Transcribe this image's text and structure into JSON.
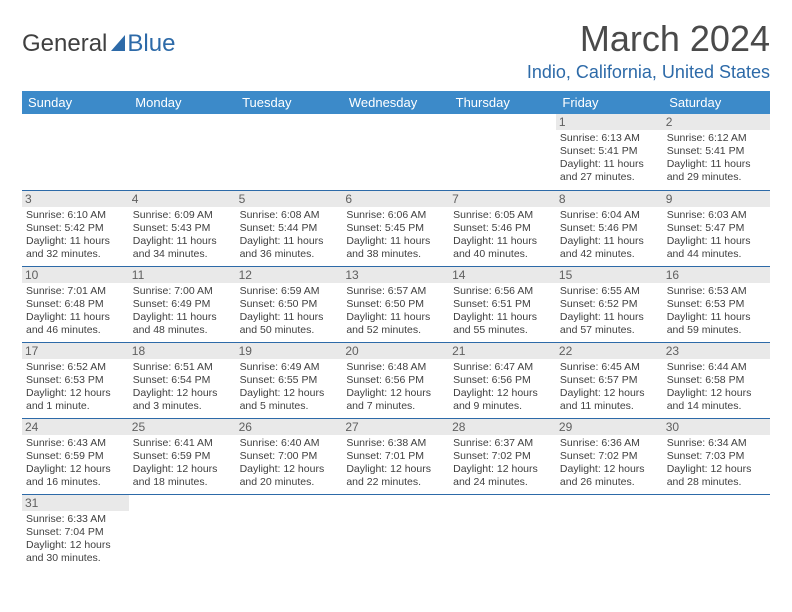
{
  "logo": {
    "part1": "General",
    "part2": "Blue"
  },
  "title": {
    "month": "March 2024",
    "location": "Indio, California, United States"
  },
  "calendar": {
    "headers": [
      "Sunday",
      "Monday",
      "Tuesday",
      "Wednesday",
      "Thursday",
      "Friday",
      "Saturday"
    ],
    "colors": {
      "header_bg": "#3c8ac9",
      "header_fg": "#ffffff",
      "rule": "#2d6aa8",
      "daynum_bg": "#e9e9e9",
      "title_accent": "#2d6aa8"
    },
    "weeks": [
      [
        {
          "n": "",
          "sunrise": "",
          "sunset": "",
          "daylight": ""
        },
        {
          "n": "",
          "sunrise": "",
          "sunset": "",
          "daylight": ""
        },
        {
          "n": "",
          "sunrise": "",
          "sunset": "",
          "daylight": ""
        },
        {
          "n": "",
          "sunrise": "",
          "sunset": "",
          "daylight": ""
        },
        {
          "n": "",
          "sunrise": "",
          "sunset": "",
          "daylight": ""
        },
        {
          "n": "1",
          "sunrise": "Sunrise: 6:13 AM",
          "sunset": "Sunset: 5:41 PM",
          "daylight": "Daylight: 11 hours and 27 minutes."
        },
        {
          "n": "2",
          "sunrise": "Sunrise: 6:12 AM",
          "sunset": "Sunset: 5:41 PM",
          "daylight": "Daylight: 11 hours and 29 minutes."
        }
      ],
      [
        {
          "n": "3",
          "sunrise": "Sunrise: 6:10 AM",
          "sunset": "Sunset: 5:42 PM",
          "daylight": "Daylight: 11 hours and 32 minutes."
        },
        {
          "n": "4",
          "sunrise": "Sunrise: 6:09 AM",
          "sunset": "Sunset: 5:43 PM",
          "daylight": "Daylight: 11 hours and 34 minutes."
        },
        {
          "n": "5",
          "sunrise": "Sunrise: 6:08 AM",
          "sunset": "Sunset: 5:44 PM",
          "daylight": "Daylight: 11 hours and 36 minutes."
        },
        {
          "n": "6",
          "sunrise": "Sunrise: 6:06 AM",
          "sunset": "Sunset: 5:45 PM",
          "daylight": "Daylight: 11 hours and 38 minutes."
        },
        {
          "n": "7",
          "sunrise": "Sunrise: 6:05 AM",
          "sunset": "Sunset: 5:46 PM",
          "daylight": "Daylight: 11 hours and 40 minutes."
        },
        {
          "n": "8",
          "sunrise": "Sunrise: 6:04 AM",
          "sunset": "Sunset: 5:46 PM",
          "daylight": "Daylight: 11 hours and 42 minutes."
        },
        {
          "n": "9",
          "sunrise": "Sunrise: 6:03 AM",
          "sunset": "Sunset: 5:47 PM",
          "daylight": "Daylight: 11 hours and 44 minutes."
        }
      ],
      [
        {
          "n": "10",
          "sunrise": "Sunrise: 7:01 AM",
          "sunset": "Sunset: 6:48 PM",
          "daylight": "Daylight: 11 hours and 46 minutes."
        },
        {
          "n": "11",
          "sunrise": "Sunrise: 7:00 AM",
          "sunset": "Sunset: 6:49 PM",
          "daylight": "Daylight: 11 hours and 48 minutes."
        },
        {
          "n": "12",
          "sunrise": "Sunrise: 6:59 AM",
          "sunset": "Sunset: 6:50 PM",
          "daylight": "Daylight: 11 hours and 50 minutes."
        },
        {
          "n": "13",
          "sunrise": "Sunrise: 6:57 AM",
          "sunset": "Sunset: 6:50 PM",
          "daylight": "Daylight: 11 hours and 52 minutes."
        },
        {
          "n": "14",
          "sunrise": "Sunrise: 6:56 AM",
          "sunset": "Sunset: 6:51 PM",
          "daylight": "Daylight: 11 hours and 55 minutes."
        },
        {
          "n": "15",
          "sunrise": "Sunrise: 6:55 AM",
          "sunset": "Sunset: 6:52 PM",
          "daylight": "Daylight: 11 hours and 57 minutes."
        },
        {
          "n": "16",
          "sunrise": "Sunrise: 6:53 AM",
          "sunset": "Sunset: 6:53 PM",
          "daylight": "Daylight: 11 hours and 59 minutes."
        }
      ],
      [
        {
          "n": "17",
          "sunrise": "Sunrise: 6:52 AM",
          "sunset": "Sunset: 6:53 PM",
          "daylight": "Daylight: 12 hours and 1 minute."
        },
        {
          "n": "18",
          "sunrise": "Sunrise: 6:51 AM",
          "sunset": "Sunset: 6:54 PM",
          "daylight": "Daylight: 12 hours and 3 minutes."
        },
        {
          "n": "19",
          "sunrise": "Sunrise: 6:49 AM",
          "sunset": "Sunset: 6:55 PM",
          "daylight": "Daylight: 12 hours and 5 minutes."
        },
        {
          "n": "20",
          "sunrise": "Sunrise: 6:48 AM",
          "sunset": "Sunset: 6:56 PM",
          "daylight": "Daylight: 12 hours and 7 minutes."
        },
        {
          "n": "21",
          "sunrise": "Sunrise: 6:47 AM",
          "sunset": "Sunset: 6:56 PM",
          "daylight": "Daylight: 12 hours and 9 minutes."
        },
        {
          "n": "22",
          "sunrise": "Sunrise: 6:45 AM",
          "sunset": "Sunset: 6:57 PM",
          "daylight": "Daylight: 12 hours and 11 minutes."
        },
        {
          "n": "23",
          "sunrise": "Sunrise: 6:44 AM",
          "sunset": "Sunset: 6:58 PM",
          "daylight": "Daylight: 12 hours and 14 minutes."
        }
      ],
      [
        {
          "n": "24",
          "sunrise": "Sunrise: 6:43 AM",
          "sunset": "Sunset: 6:59 PM",
          "daylight": "Daylight: 12 hours and 16 minutes."
        },
        {
          "n": "25",
          "sunrise": "Sunrise: 6:41 AM",
          "sunset": "Sunset: 6:59 PM",
          "daylight": "Daylight: 12 hours and 18 minutes."
        },
        {
          "n": "26",
          "sunrise": "Sunrise: 6:40 AM",
          "sunset": "Sunset: 7:00 PM",
          "daylight": "Daylight: 12 hours and 20 minutes."
        },
        {
          "n": "27",
          "sunrise": "Sunrise: 6:38 AM",
          "sunset": "Sunset: 7:01 PM",
          "daylight": "Daylight: 12 hours and 22 minutes."
        },
        {
          "n": "28",
          "sunrise": "Sunrise: 6:37 AM",
          "sunset": "Sunset: 7:02 PM",
          "daylight": "Daylight: 12 hours and 24 minutes."
        },
        {
          "n": "29",
          "sunrise": "Sunrise: 6:36 AM",
          "sunset": "Sunset: 7:02 PM",
          "daylight": "Daylight: 12 hours and 26 minutes."
        },
        {
          "n": "30",
          "sunrise": "Sunrise: 6:34 AM",
          "sunset": "Sunset: 7:03 PM",
          "daylight": "Daylight: 12 hours and 28 minutes."
        }
      ],
      [
        {
          "n": "31",
          "sunrise": "Sunrise: 6:33 AM",
          "sunset": "Sunset: 7:04 PM",
          "daylight": "Daylight: 12 hours and 30 minutes."
        },
        {
          "n": "",
          "sunrise": "",
          "sunset": "",
          "daylight": ""
        },
        {
          "n": "",
          "sunrise": "",
          "sunset": "",
          "daylight": ""
        },
        {
          "n": "",
          "sunrise": "",
          "sunset": "",
          "daylight": ""
        },
        {
          "n": "",
          "sunrise": "",
          "sunset": "",
          "daylight": ""
        },
        {
          "n": "",
          "sunrise": "",
          "sunset": "",
          "daylight": ""
        },
        {
          "n": "",
          "sunrise": "",
          "sunset": "",
          "daylight": ""
        }
      ]
    ]
  }
}
